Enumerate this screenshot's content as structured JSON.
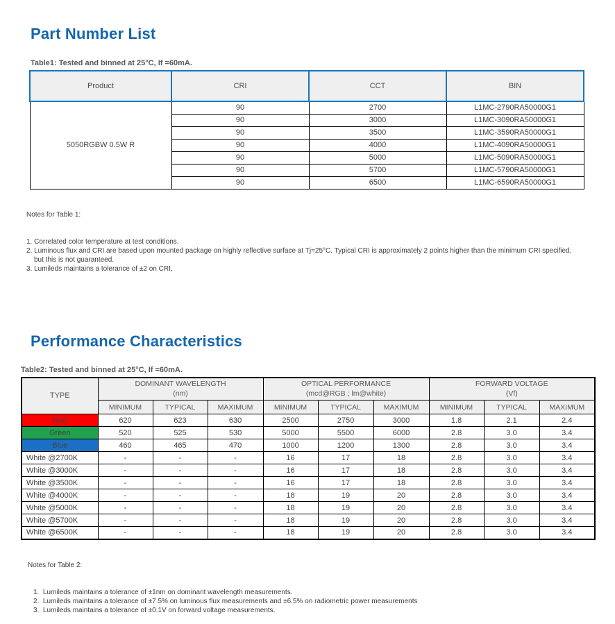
{
  "colors": {
    "accent_blue": "#1566ad",
    "table1_header_border": "#1b75bc",
    "header_bg": "#efefef",
    "red_row_bg": "#fe0000",
    "green_row_bg": "#21a14d",
    "blue_row_bg": "#1b6fc5",
    "colored_row_text": "#444444"
  },
  "section1": {
    "title": "Part Number List",
    "caption": "Table1: Tested and binned at 25°C, If =60mA."
  },
  "table1": {
    "headers": [
      "Product",
      "CRI",
      "CCT",
      "BIN"
    ],
    "product": "5050RGBW 0.5W R",
    "rows": [
      {
        "cri": "90",
        "cct": "2700",
        "bin": "L1MC-2790RA50000G1"
      },
      {
        "cri": "90",
        "cct": "3000",
        "bin": "L1MC-3090RA50000G1"
      },
      {
        "cri": "90",
        "cct": "3500",
        "bin": "L1MC-3590RA50000G1"
      },
      {
        "cri": "90",
        "cct": "4000",
        "bin": "L1MC-4090RA50000G1"
      },
      {
        "cri": "90",
        "cct": "5000",
        "bin": "L1MC-5090RA50000G1"
      },
      {
        "cri": "90",
        "cct": "5700",
        "bin": "L1MC-5790RA50000G1"
      },
      {
        "cri": "90",
        "cct": "6500",
        "bin": "L1MC-6590RA50000G1"
      }
    ]
  },
  "notes1": {
    "heading": "Notes for Table 1:",
    "items": [
      "1. Correlated color temperature at test conditions.",
      "2. Luminous flux and CRI are based upon mounted package on highly reflective surface at Tj=25°C. Typical CRI is approximately 2 points higher than the minimum CRI specified, but this is not guaranteed.",
      "3. Lumileds maintains a tolerance of ±2 on CRI,"
    ]
  },
  "section2": {
    "title": "Performance Characteristics",
    "caption": "Table2: Tested and binned at 25°C, If =60mA."
  },
  "table2": {
    "type_header": "TYPE",
    "groups": [
      {
        "line1": "DOMINANT WAVELENGTH",
        "line2": "(nm)"
      },
      {
        "line1": "OPTICAL PERFORMANCE",
        "line2": "(mcd@RGB ; lm@white)"
      },
      {
        "line1": "FORWARD VOLTAGE",
        "line2": "(Vf)"
      }
    ],
    "sub_headers": [
      "MINIMUM",
      "TYPICAL",
      "MAXIMUM"
    ],
    "rows": [
      {
        "type": "Red",
        "bg": "#fe0000",
        "fg": "#444444",
        "align": "center",
        "values": [
          "620",
          "623",
          "630",
          "2500",
          "2750",
          "3000",
          "1.8",
          "2.1",
          "2.4"
        ]
      },
      {
        "type": "Green",
        "bg": "#21a14d",
        "fg": "#444444",
        "align": "center",
        "values": [
          "520",
          "525",
          "530",
          "5000",
          "5500",
          "6000",
          "2.8",
          "3.0",
          "3.4"
        ]
      },
      {
        "type": "Blue",
        "bg": "#1b6fc5",
        "fg": "#444444",
        "align": "center",
        "values": [
          "460",
          "465",
          "470",
          "1000",
          "1200",
          "1300",
          "2.8",
          "3.0",
          "3.4"
        ]
      },
      {
        "type": "White @2700K",
        "bg": "",
        "fg": "",
        "align": "left",
        "values": [
          "-",
          "-",
          "-",
          "16",
          "17",
          "18",
          "2.8",
          "3.0",
          "3.4"
        ]
      },
      {
        "type": "White @3000K",
        "bg": "",
        "fg": "",
        "align": "left",
        "values": [
          "-",
          "-",
          "-",
          "16",
          "17",
          "18",
          "2.8",
          "3.0",
          "3.4"
        ]
      },
      {
        "type": "White @3500K",
        "bg": "",
        "fg": "",
        "align": "left",
        "values": [
          "-",
          "-",
          "-",
          "16",
          "17",
          "18",
          "2.8",
          "3.0",
          "3.4"
        ]
      },
      {
        "type": "White @4000K",
        "bg": "",
        "fg": "",
        "align": "left",
        "values": [
          "-",
          "-",
          "-",
          "18",
          "19",
          "20",
          "2.8",
          "3.0",
          "3.4"
        ]
      },
      {
        "type": "White @5000K",
        "bg": "",
        "fg": "",
        "align": "left",
        "values": [
          "-",
          "-",
          "-",
          "18",
          "19",
          "20",
          "2.8",
          "3.0",
          "3.4"
        ]
      },
      {
        "type": "White @5700K",
        "bg": "",
        "fg": "",
        "align": "left",
        "values": [
          "-",
          "-",
          "-",
          "18",
          "19",
          "20",
          "2.8",
          "3.0",
          "3.4"
        ]
      },
      {
        "type": "White @6500K",
        "bg": "",
        "fg": "",
        "align": "left",
        "values": [
          "-",
          "-",
          "-",
          "18",
          "19",
          "20",
          "2.8",
          "3.0",
          "3.4"
        ]
      }
    ]
  },
  "notes2": {
    "heading": "Notes for Table 2:",
    "items": [
      "1.  Lumileds maintains a tolerance of ±1nm on dominant wavelength measurements.",
      "2.  Lumileds maintains a tolerance of ±7.5% on luminous flux measurements and ±6.5% on radiometric power measurements",
      "3.  Lumileds maintains a tolerance of ±0.1V on forward voltage measurements."
    ]
  }
}
